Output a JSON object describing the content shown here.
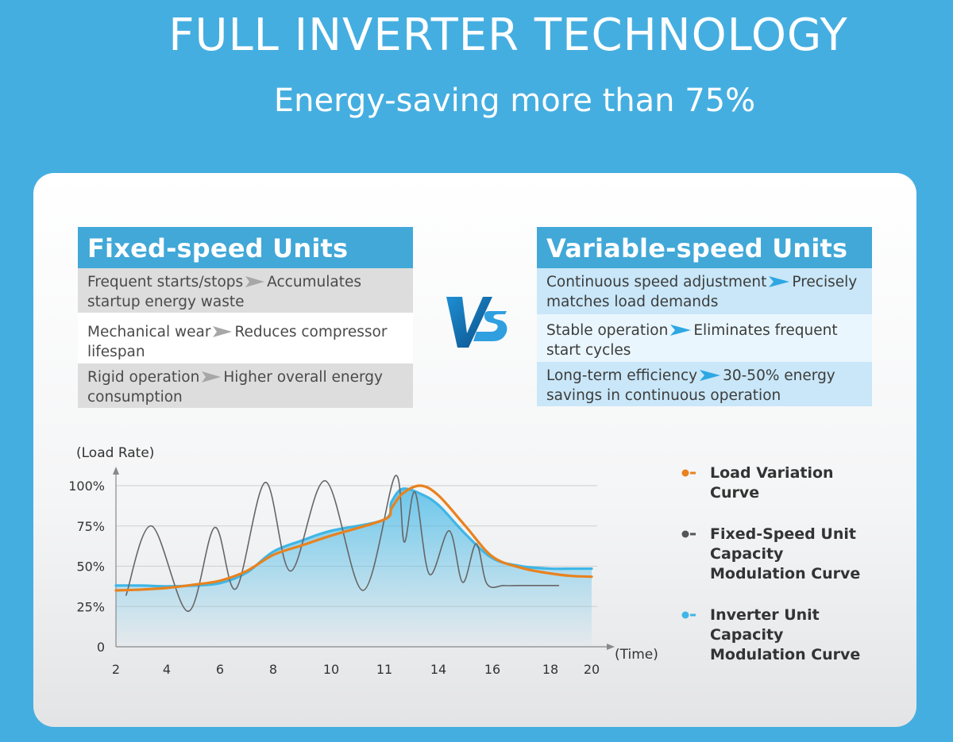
{
  "header": {
    "title": "FULL INVERTER TECHNOLOGY",
    "subtitle": "Energy-saving more than 75%"
  },
  "fixed": {
    "title": "Fixed-speed Units",
    "rows": [
      {
        "cause": "Frequent starts/stops",
        "effect": "Accumulates",
        "effect2": "startup energy waste"
      },
      {
        "cause": "Mechanical wear",
        "effect": "Reduces compressor",
        "effect2": "lifespan"
      },
      {
        "cause": "Rigid operation",
        "effect": "Higher overall energy",
        "effect2": "consumption"
      }
    ]
  },
  "variable": {
    "title": "Variable-speed Units",
    "rows": [
      {
        "cause": "Continuous speed adjustment",
        "effect": "Precisely",
        "effect2": "matches load demands"
      },
      {
        "cause": "Stable operation",
        "effect": "Eliminates frequent",
        "effect2": "start cycles"
      },
      {
        "cause": "Long-term efficiency",
        "effect": "30-50% energy",
        "effect2": "savings in continuous operation"
      }
    ]
  },
  "vs_label": "VS",
  "colors": {
    "background": "#45aee0",
    "header_blue": "#41a8d8",
    "load": "#e8821e",
    "fixed": "#666666",
    "inverter": "#3fb6e6"
  },
  "chart_data": {
    "type": "line",
    "ylabel": "(Load Rate)",
    "xlabel": "(Time)",
    "x_ticks": [
      "2",
      "4",
      "6",
      "8",
      "10",
      "11",
      "14",
      "16",
      "18",
      "20"
    ],
    "y_ticks": [
      "0",
      "25%",
      "50%",
      "75%",
      "100%"
    ],
    "ylim": [
      0,
      100
    ],
    "grid": true,
    "legend_position": "right",
    "series": [
      {
        "name": "Load Variation Curve",
        "color": "#e8821e",
        "style": "smooth",
        "x": [
          2,
          3,
          4,
          5,
          6,
          7,
          8,
          9,
          10,
          11,
          11.4,
          12,
          13,
          14,
          15,
          16,
          17,
          18,
          19,
          20
        ],
        "y": [
          35,
          35.5,
          36.5,
          38.5,
          41,
          47,
          57,
          63,
          69,
          79,
          86,
          95,
          100,
          94,
          75,
          56,
          49,
          45.5,
          44,
          43.5
        ]
      },
      {
        "name": "Fixed-Speed Unit Capacity Modulation Curve",
        "color": "#666666",
        "style": "smooth",
        "x": [
          2.4,
          3.4,
          4.8,
          5.8,
          6.6,
          7.7,
          8.6,
          9.8,
          10.6,
          11.6,
          12.1,
          12.7,
          13.5,
          14.4,
          14.9,
          15.4,
          15.8,
          16.4,
          17,
          17.8,
          18.4
        ],
        "y": [
          32,
          75,
          22,
          74,
          36,
          102,
          47,
          103,
          35,
          106,
          65,
          96,
          45,
          72,
          40,
          64,
          39,
          38,
          38,
          38,
          38
        ]
      },
      {
        "name": "Inverter Unit Capacity Modulation Curve",
        "color": "#3fb6e6",
        "style": "smooth",
        "filled": true,
        "x": [
          2,
          3,
          4,
          5,
          6,
          7,
          8,
          9,
          10,
          11,
          11.4,
          12,
          13,
          14,
          15,
          16,
          17,
          18,
          19,
          20
        ],
        "y": [
          38,
          38,
          37.5,
          38,
          39.5,
          46,
          59,
          66,
          72,
          79,
          90,
          98,
          95,
          88,
          70,
          55,
          50,
          48.5,
          48.5,
          48.5
        ]
      }
    ]
  }
}
